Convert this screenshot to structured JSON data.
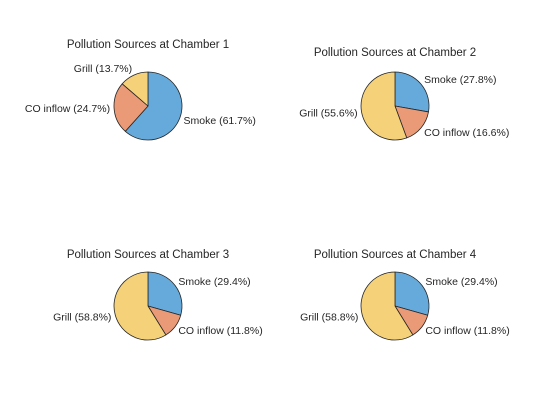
{
  "colors": {
    "smoke": "#66aadb",
    "co_inflow": "#ea9a76",
    "grill": "#f5d27a",
    "text": "#262626",
    "background": "#ffffff"
  },
  "chart_data": [
    {
      "type": "pie",
      "title": "Pollution Sources at Chamber 1",
      "slices": [
        {
          "name": "Smoke",
          "value": 61.7,
          "label": "Smoke (61.7%)",
          "color": "#66aadb"
        },
        {
          "name": "CO inflow",
          "value": 24.7,
          "label": "CO inflow (24.7%)",
          "color": "#ea9a76"
        },
        {
          "name": "Grill",
          "value": 13.7,
          "label": "Grill (13.7%)",
          "color": "#f5d27a"
        }
      ]
    },
    {
      "type": "pie",
      "title": "Pollution Sources at Chamber 2",
      "slices": [
        {
          "name": "Smoke",
          "value": 27.8,
          "label": "Smoke (27.8%)",
          "color": "#66aadb"
        },
        {
          "name": "CO inflow",
          "value": 16.6,
          "label": "CO inflow (16.6%)",
          "color": "#ea9a76"
        },
        {
          "name": "Grill",
          "value": 55.6,
          "label": "Grill (55.6%)",
          "color": "#f5d27a"
        }
      ]
    },
    {
      "type": "pie",
      "title": "Pollution Sources at Chamber 3",
      "slices": [
        {
          "name": "Smoke",
          "value": 29.4,
          "label": "Smoke (29.4%)",
          "color": "#66aadb"
        },
        {
          "name": "CO inflow",
          "value": 11.8,
          "label": "CO inflow (11.8%)",
          "color": "#ea9a76"
        },
        {
          "name": "Grill",
          "value": 58.8,
          "label": "Grill (58.8%)",
          "color": "#f5d27a"
        }
      ]
    },
    {
      "type": "pie",
      "title": "Pollution Sources at Chamber 4",
      "slices": [
        {
          "name": "Smoke",
          "value": 29.4,
          "label": "Smoke (29.4%)",
          "color": "#66aadb"
        },
        {
          "name": "CO inflow",
          "value": 11.8,
          "label": "CO inflow (11.8%)",
          "color": "#ea9a76"
        },
        {
          "name": "Grill",
          "value": 58.8,
          "label": "Grill (58.8%)",
          "color": "#f5d27a"
        }
      ]
    }
  ]
}
